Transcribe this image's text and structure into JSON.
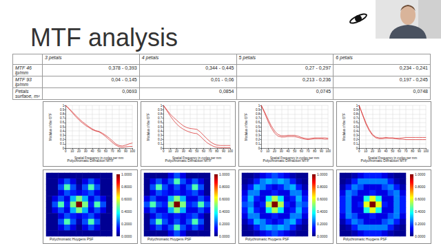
{
  "title": "MTF analysis",
  "table": {
    "columns": [
      "3 petals",
      "4 petals",
      "5 petals",
      "6 petals"
    ],
    "rows": [
      {
        "label": "MTF 46 lp/mm",
        "cells": [
          "0,378 - 0,393",
          "0,344 - 0,445",
          "0,27 - 0,297",
          "0,234 - 0,241"
        ]
      },
      {
        "label": "MTF 93 lp/mm",
        "cells": [
          "0,04 - 0,145",
          "0,01 - 0,06",
          "0,213 - 0,236",
          "0,197 - 0,245"
        ]
      },
      {
        "label": "Petals surfaoe, m²",
        "cells": [
          "0,0693",
          "0,0854",
          "0,0745",
          "0,0748"
        ]
      }
    ]
  },
  "chart_data": [
    {
      "type": "line",
      "title": "Polychromatic Diffraction MTF",
      "xlabel": "Spatial Frequency in cycles per mm",
      "ylabel": "Modulus of the OTF",
      "x": [
        0,
        5,
        10,
        15,
        20,
        25,
        30,
        35,
        40,
        45,
        50,
        55,
        60,
        65,
        70,
        75,
        80,
        85,
        90,
        95,
        100
      ],
      "series": [
        {
          "color": "#d62020",
          "values": [
            1,
            0.93,
            0.85,
            0.77,
            0.69,
            0.62,
            0.56,
            0.5,
            0.45,
            0.41,
            0.39,
            0.35,
            0.3,
            0.24,
            0.17,
            0.1,
            0.06,
            0.05,
            0.07,
            0.1,
            0.12
          ]
        },
        {
          "color": "#d62020",
          "values": [
            1,
            0.92,
            0.83,
            0.74,
            0.66,
            0.59,
            0.53,
            0.48,
            0.43,
            0.4,
            0.38,
            0.33,
            0.27,
            0.2,
            0.13,
            0.07,
            0.03,
            0.02,
            0.03,
            0.04,
            0.04
          ]
        }
      ],
      "xlim": [
        0,
        100
      ],
      "xticks": [
        0,
        10,
        20,
        30,
        40,
        50,
        60,
        70,
        80,
        90,
        100
      ],
      "ylim": [
        0,
        1
      ],
      "yticks": [
        0,
        0.1,
        0.2,
        0.3,
        0.4,
        0.5,
        0.6,
        0.7,
        0.8,
        0.9,
        1
      ],
      "grid": true
    },
    {
      "type": "line",
      "title": "Polychromatic Diffraction MTF",
      "xlabel": "Spatial Frequency in cycles per mm",
      "ylabel": "Modulus of the OTF",
      "x": [
        0,
        5,
        10,
        15,
        20,
        25,
        30,
        35,
        40,
        45,
        50,
        55,
        60,
        65,
        70,
        75,
        80,
        85,
        90,
        95,
        100
      ],
      "series": [
        {
          "color": "#d62020",
          "values": [
            1,
            0.9,
            0.8,
            0.72,
            0.65,
            0.58,
            0.52,
            0.48,
            0.46,
            0.45,
            0.44,
            0.38,
            0.3,
            0.22,
            0.15,
            0.1,
            0.07,
            0.06,
            0.06,
            0.06,
            0.06
          ]
        },
        {
          "color": "#d62020",
          "values": [
            1,
            0.88,
            0.76,
            0.65,
            0.56,
            0.49,
            0.44,
            0.4,
            0.37,
            0.35,
            0.34,
            0.28,
            0.2,
            0.13,
            0.08,
            0.04,
            0.02,
            0.01,
            0.01,
            0.01,
            0.01
          ]
        }
      ],
      "xlim": [
        0,
        100
      ],
      "xticks": [
        0,
        10,
        20,
        30,
        40,
        50,
        60,
        70,
        80,
        90,
        100
      ],
      "ylim": [
        0,
        1
      ],
      "yticks": [
        0,
        0.1,
        0.2,
        0.3,
        0.4,
        0.5,
        0.6,
        0.7,
        0.8,
        0.9,
        1
      ],
      "grid": true
    },
    {
      "type": "line",
      "title": "Polychromatic Diffraction MTF",
      "xlabel": "Spatial Frequency in cycles per mm",
      "ylabel": "Modulus of the OTF",
      "x": [
        0,
        5,
        10,
        15,
        20,
        25,
        30,
        35,
        40,
        45,
        50,
        55,
        60,
        65,
        70,
        75,
        80,
        85,
        90,
        95,
        100
      ],
      "series": [
        {
          "color": "#d62020",
          "values": [
            1,
            0.85,
            0.68,
            0.52,
            0.4,
            0.32,
            0.29,
            0.29,
            0.3,
            0.3,
            0.3,
            0.28,
            0.25,
            0.23,
            0.22,
            0.23,
            0.24,
            0.24,
            0.24,
            0.24,
            0.23
          ]
        },
        {
          "color": "#d62020",
          "values": [
            1,
            0.82,
            0.63,
            0.47,
            0.35,
            0.28,
            0.26,
            0.26,
            0.27,
            0.27,
            0.27,
            0.25,
            0.23,
            0.21,
            0.2,
            0.21,
            0.22,
            0.22,
            0.22,
            0.21,
            0.21
          ]
        }
      ],
      "xlim": [
        0,
        100
      ],
      "xticks": [
        0,
        10,
        20,
        30,
        40,
        50,
        60,
        70,
        80,
        90,
        100
      ],
      "ylim": [
        0,
        1
      ],
      "yticks": [
        0,
        0.1,
        0.2,
        0.3,
        0.4,
        0.5,
        0.6,
        0.7,
        0.8,
        0.9,
        1
      ],
      "grid": true
    },
    {
      "type": "line",
      "title": "Polychromatic Diffraction MTF",
      "xlabel": "Spatial Frequency in cycles per mm",
      "ylabel": "Modulus of the OTF",
      "x": [
        0,
        5,
        10,
        15,
        20,
        25,
        30,
        35,
        40,
        45,
        50,
        55,
        60,
        65,
        70,
        75,
        80,
        85,
        90,
        95,
        100
      ],
      "series": [
        {
          "color": "#d62020",
          "values": [
            1,
            0.8,
            0.6,
            0.44,
            0.32,
            0.26,
            0.24,
            0.24,
            0.25,
            0.24,
            0.24,
            0.23,
            0.23,
            0.24,
            0.25,
            0.25,
            0.25,
            0.25,
            0.25,
            0.25,
            0.25
          ]
        },
        {
          "color": "#d62020",
          "values": [
            1,
            0.78,
            0.57,
            0.41,
            0.3,
            0.24,
            0.22,
            0.22,
            0.23,
            0.23,
            0.23,
            0.22,
            0.21,
            0.21,
            0.2,
            0.2,
            0.2,
            0.2,
            0.2,
            0.2,
            0.2
          ]
        }
      ],
      "xlim": [
        0,
        100
      ],
      "xticks": [
        0,
        10,
        20,
        30,
        40,
        50,
        60,
        70,
        80,
        90,
        100
      ],
      "ylim": [
        0,
        1
      ],
      "yticks": [
        0,
        0.1,
        0.2,
        0.3,
        0.4,
        0.5,
        0.6,
        0.7,
        0.8,
        0.9,
        1
      ],
      "grid": true
    },
    {
      "type": "heatmap",
      "title": "Polychromatic Huygens PSF",
      "tick_labels": false,
      "colorbar_range": [
        0,
        1
      ],
      "colorbar_ticks": [
        {
          "value": 0,
          "label": "0.0000"
        },
        {
          "value": 0.2,
          "label": "0.2000"
        },
        {
          "value": 0.4,
          "label": "0.4000"
        },
        {
          "value": 0.6,
          "label": "0.6000"
        },
        {
          "value": 0.8,
          "label": "0.8000"
        },
        {
          "value": 1,
          "label": "1.0000"
        }
      ],
      "cells": [
        [
          0.02,
          0.02,
          0.02,
          0.02,
          0.02,
          0.02,
          0.02,
          0.02,
          0.02,
          0.02,
          0.02
        ],
        [
          0.02,
          0.02,
          0.1,
          0.2,
          0.1,
          0.02,
          0.1,
          0.2,
          0.1,
          0.02,
          0.02
        ],
        [
          0.02,
          0.02,
          0.2,
          0.45,
          0.2,
          0.05,
          0.2,
          0.45,
          0.2,
          0.02,
          0.02
        ],
        [
          0.02,
          0.02,
          0.1,
          0.2,
          0.15,
          0.1,
          0.15,
          0.2,
          0.1,
          0.02,
          0.02
        ],
        [
          0.02,
          0.1,
          0.2,
          0.1,
          0.3,
          0.5,
          0.3,
          0.1,
          0.2,
          0.1,
          0.02
        ],
        [
          0.02,
          0.2,
          0.45,
          0.15,
          0.5,
          1,
          0.5,
          0.15,
          0.45,
          0.2,
          0.02
        ],
        [
          0.02,
          0.1,
          0.2,
          0.1,
          0.3,
          0.5,
          0.3,
          0.1,
          0.2,
          0.1,
          0.02
        ],
        [
          0.02,
          0.02,
          0.1,
          0.2,
          0.15,
          0.1,
          0.15,
          0.2,
          0.1,
          0.02,
          0.02
        ],
        [
          0.02,
          0.02,
          0.2,
          0.45,
          0.2,
          0.05,
          0.2,
          0.45,
          0.2,
          0.02,
          0.02
        ],
        [
          0.02,
          0.02,
          0.1,
          0.2,
          0.1,
          0.02,
          0.1,
          0.2,
          0.1,
          0.02,
          0.02
        ],
        [
          0.02,
          0.02,
          0.02,
          0.02,
          0.02,
          0.02,
          0.02,
          0.02,
          0.02,
          0.02,
          0.02
        ]
      ]
    },
    {
      "type": "heatmap",
      "title": "Polychromatic Huygens PSF",
      "tick_labels": false,
      "colorbar_range": [
        0,
        1
      ],
      "colorbar_ticks": [
        {
          "value": 0,
          "label": "0.0000"
        },
        {
          "value": 0.2,
          "label": "0.2000"
        },
        {
          "value": 0.4,
          "label": "0.4000"
        },
        {
          "value": 0.6,
          "label": "0.6000"
        },
        {
          "value": 0.8,
          "label": "0.8000"
        },
        {
          "value": 1,
          "label": "1.0000"
        }
      ],
      "cells": [
        [
          0.02,
          0.02,
          0.02,
          0.02,
          0.1,
          0.2,
          0.1,
          0.02,
          0.02,
          0.02,
          0.02
        ],
        [
          0.02,
          0.1,
          0.2,
          0.1,
          0.2,
          0.45,
          0.2,
          0.1,
          0.2,
          0.1,
          0.02
        ],
        [
          0.02,
          0.2,
          0.45,
          0.2,
          0.1,
          0.2,
          0.1,
          0.2,
          0.45,
          0.2,
          0.02
        ],
        [
          0.02,
          0.1,
          0.2,
          0.15,
          0.1,
          0.15,
          0.1,
          0.15,
          0.2,
          0.1,
          0.02
        ],
        [
          0.1,
          0.2,
          0.1,
          0.1,
          0.3,
          0.5,
          0.3,
          0.1,
          0.1,
          0.2,
          0.1
        ],
        [
          0.2,
          0.45,
          0.2,
          0.15,
          0.5,
          1,
          0.5,
          0.15,
          0.2,
          0.45,
          0.2
        ],
        [
          0.1,
          0.2,
          0.1,
          0.1,
          0.3,
          0.5,
          0.3,
          0.1,
          0.1,
          0.2,
          0.1
        ],
        [
          0.02,
          0.1,
          0.2,
          0.15,
          0.1,
          0.15,
          0.1,
          0.15,
          0.2,
          0.1,
          0.02
        ],
        [
          0.02,
          0.2,
          0.45,
          0.2,
          0.1,
          0.2,
          0.1,
          0.2,
          0.45,
          0.2,
          0.02
        ],
        [
          0.02,
          0.1,
          0.2,
          0.1,
          0.2,
          0.45,
          0.2,
          0.1,
          0.2,
          0.1,
          0.02
        ],
        [
          0.02,
          0.02,
          0.02,
          0.02,
          0.1,
          0.2,
          0.1,
          0.02,
          0.02,
          0.02,
          0.02
        ]
      ]
    },
    {
      "type": "heatmap",
      "title": "Polychromatic Huygens PSF",
      "tick_labels": false,
      "colorbar_range": [
        0,
        1
      ],
      "colorbar_ticks": [
        {
          "value": 0,
          "label": "0.0000"
        },
        {
          "value": 0.2,
          "label": "0.2000"
        },
        {
          "value": 0.4,
          "label": "0.4000"
        },
        {
          "value": 0.6,
          "label": "0.6000"
        },
        {
          "value": 0.8,
          "label": "0.8000"
        },
        {
          "value": 1,
          "label": "1.0000"
        }
      ],
      "cells": [
        [
          0.02,
          0.02,
          0.05,
          0.1,
          0.15,
          0.2,
          0.15,
          0.1,
          0.05,
          0.02,
          0.02
        ],
        [
          0.02,
          0.05,
          0.15,
          0.25,
          0.3,
          0.25,
          0.3,
          0.25,
          0.15,
          0.05,
          0.02
        ],
        [
          0.05,
          0.15,
          0.3,
          0.25,
          0.15,
          0.1,
          0.15,
          0.25,
          0.3,
          0.15,
          0.05
        ],
        [
          0.1,
          0.25,
          0.25,
          0.1,
          0.1,
          0.15,
          0.1,
          0.1,
          0.25,
          0.25,
          0.1
        ],
        [
          0.15,
          0.3,
          0.15,
          0.1,
          0.35,
          0.55,
          0.35,
          0.1,
          0.15,
          0.3,
          0.15
        ],
        [
          0.2,
          0.25,
          0.1,
          0.15,
          0.55,
          1,
          0.55,
          0.15,
          0.1,
          0.25,
          0.2
        ],
        [
          0.15,
          0.3,
          0.15,
          0.1,
          0.35,
          0.55,
          0.35,
          0.1,
          0.15,
          0.3,
          0.15
        ],
        [
          0.1,
          0.25,
          0.25,
          0.1,
          0.1,
          0.15,
          0.1,
          0.1,
          0.25,
          0.25,
          0.1
        ],
        [
          0.05,
          0.15,
          0.3,
          0.25,
          0.15,
          0.1,
          0.15,
          0.25,
          0.3,
          0.15,
          0.05
        ],
        [
          0.02,
          0.05,
          0.15,
          0.25,
          0.3,
          0.25,
          0.3,
          0.25,
          0.15,
          0.05,
          0.02
        ],
        [
          0.02,
          0.02,
          0.05,
          0.1,
          0.15,
          0.2,
          0.15,
          0.1,
          0.05,
          0.02,
          0.02
        ]
      ]
    },
    {
      "type": "heatmap",
      "title": "Polychromatic Huygens PSF",
      "tick_labels": false,
      "colorbar_range": [
        0,
        1
      ],
      "colorbar_ticks": [
        {
          "value": 0,
          "label": "0.0000"
        },
        {
          "value": 0.2,
          "label": "0.2000"
        },
        {
          "value": 0.4,
          "label": "0.4000"
        },
        {
          "value": 0.6,
          "label": "0.6000"
        },
        {
          "value": 0.8,
          "label": "0.8000"
        },
        {
          "value": 1,
          "label": "1.0000"
        }
      ],
      "cells": [
        [
          0.02,
          0.02,
          0.05,
          0.1,
          0.15,
          0.15,
          0.15,
          0.1,
          0.05,
          0.02,
          0.02
        ],
        [
          0.02,
          0.05,
          0.15,
          0.25,
          0.25,
          0.25,
          0.25,
          0.25,
          0.15,
          0.05,
          0.02
        ],
        [
          0.05,
          0.15,
          0.25,
          0.2,
          0.1,
          0.1,
          0.1,
          0.2,
          0.25,
          0.15,
          0.05
        ],
        [
          0.1,
          0.25,
          0.2,
          0.1,
          0.1,
          0.15,
          0.1,
          0.1,
          0.2,
          0.25,
          0.1
        ],
        [
          0.15,
          0.25,
          0.1,
          0.1,
          0.4,
          0.6,
          0.4,
          0.1,
          0.1,
          0.25,
          0.15
        ],
        [
          0.15,
          0.25,
          0.1,
          0.15,
          0.6,
          1,
          0.6,
          0.15,
          0.1,
          0.25,
          0.15
        ],
        [
          0.15,
          0.25,
          0.1,
          0.1,
          0.4,
          0.6,
          0.4,
          0.1,
          0.1,
          0.25,
          0.15
        ],
        [
          0.1,
          0.25,
          0.2,
          0.1,
          0.1,
          0.15,
          0.1,
          0.1,
          0.2,
          0.25,
          0.1
        ],
        [
          0.05,
          0.15,
          0.25,
          0.2,
          0.1,
          0.1,
          0.1,
          0.2,
          0.25,
          0.15,
          0.05
        ],
        [
          0.02,
          0.05,
          0.15,
          0.25,
          0.25,
          0.25,
          0.25,
          0.25,
          0.15,
          0.05,
          0.02
        ],
        [
          0.02,
          0.02,
          0.05,
          0.1,
          0.15,
          0.15,
          0.15,
          0.1,
          0.05,
          0.02,
          0.02
        ]
      ]
    }
  ]
}
